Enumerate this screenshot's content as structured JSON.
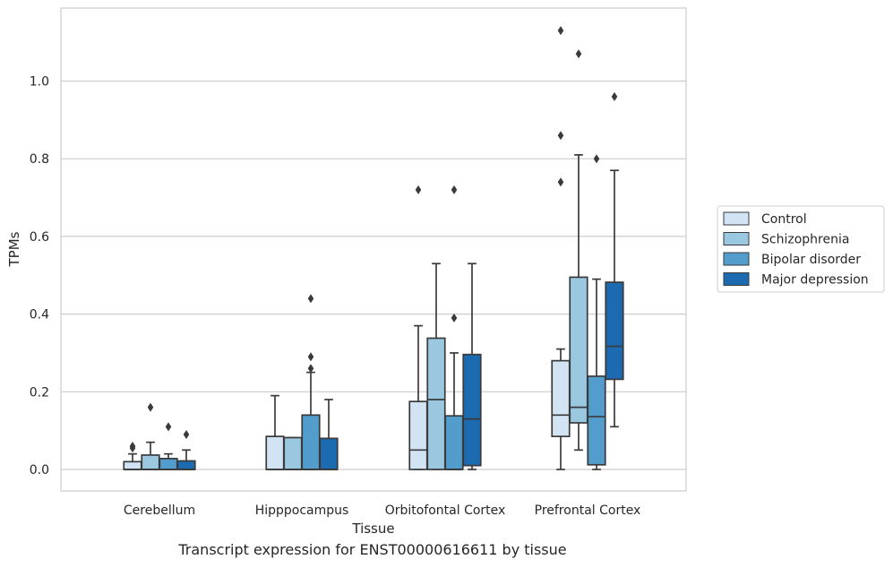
{
  "caption": "Transcript expression for ENST00000616611 by tissue",
  "chart_data": {
    "type": "box",
    "xlabel": "Tissue",
    "ylabel": "TPMs",
    "ylim": [
      -0.055,
      1.19
    ],
    "yticks": [
      0.0,
      0.2,
      0.4,
      0.6,
      0.8,
      1.0
    ],
    "ytick_labels": [
      "0.0",
      "0.2",
      "0.4",
      "0.6",
      "0.8",
      "1.0"
    ],
    "grid": "horizontal",
    "legend_position": "right",
    "categories": [
      "Cerebellum",
      "Hipppocampus",
      "Orbitofontal Cortex",
      "Prefrontal Cortex"
    ],
    "series": [
      {
        "name": "Control",
        "color": "#d2e3f3",
        "boxes": [
          {
            "whisker_low": 0.0,
            "q1": 0.0,
            "median": 0.0,
            "q3": 0.02,
            "whisker_high": 0.04,
            "outliers": [
              0.06,
              0.055
            ]
          },
          {
            "whisker_low": 0.0,
            "q1": 0.0,
            "median": 0.0,
            "q3": 0.085,
            "whisker_high": 0.19,
            "outliers": []
          },
          {
            "whisker_low": 0.0,
            "q1": 0.0,
            "median": 0.05,
            "q3": 0.175,
            "whisker_high": 0.37,
            "outliers": [
              0.72
            ]
          },
          {
            "whisker_low": 0.0,
            "q1": 0.085,
            "median": 0.14,
            "q3": 0.28,
            "whisker_high": 0.31,
            "outliers": [
              0.74,
              0.86,
              1.13
            ]
          }
        ]
      },
      {
        "name": "Schizophrenia",
        "color": "#9ac8e0",
        "boxes": [
          {
            "whisker_low": 0.0,
            "q1": 0.0,
            "median": 0.0,
            "q3": 0.037,
            "whisker_high": 0.07,
            "outliers": [
              0.16
            ]
          },
          {
            "whisker_low": 0.0,
            "q1": 0.0,
            "median": 0.0,
            "q3": 0.082,
            "whisker_high": 0.082,
            "outliers": []
          },
          {
            "whisker_low": 0.0,
            "q1": 0.0,
            "median": 0.18,
            "q3": 0.338,
            "whisker_high": 0.53,
            "outliers": []
          },
          {
            "whisker_low": 0.05,
            "q1": 0.12,
            "median": 0.16,
            "q3": 0.495,
            "whisker_high": 0.81,
            "outliers": [
              1.07
            ]
          }
        ]
      },
      {
        "name": "Bipolar disorder",
        "color": "#529dcc",
        "boxes": [
          {
            "whisker_low": 0.0,
            "q1": 0.0,
            "median": 0.0,
            "q3": 0.028,
            "whisker_high": 0.04,
            "outliers": [
              0.11
            ]
          },
          {
            "whisker_low": 0.0,
            "q1": 0.0,
            "median": 0.0,
            "q3": 0.14,
            "whisker_high": 0.25,
            "outliers": [
              0.26,
              0.29,
              0.44
            ]
          },
          {
            "whisker_low": 0.0,
            "q1": 0.0,
            "median": 0.0,
            "q3": 0.138,
            "whisker_high": 0.3,
            "outliers": [
              0.39,
              0.72
            ]
          },
          {
            "whisker_low": 0.0,
            "q1": 0.012,
            "median": 0.136,
            "q3": 0.24,
            "whisker_high": 0.49,
            "outliers": [
              0.8
            ]
          }
        ]
      },
      {
        "name": "Major depression",
        "color": "#1c6aaf",
        "boxes": [
          {
            "whisker_low": 0.0,
            "q1": 0.0,
            "median": 0.0,
            "q3": 0.022,
            "whisker_high": 0.05,
            "outliers": [
              0.09
            ]
          },
          {
            "whisker_low": 0.0,
            "q1": 0.0,
            "median": 0.0,
            "q3": 0.08,
            "whisker_high": 0.18,
            "outliers": []
          },
          {
            "whisker_low": 0.0,
            "q1": 0.01,
            "median": 0.13,
            "q3": 0.296,
            "whisker_high": 0.53,
            "outliers": []
          },
          {
            "whisker_low": 0.11,
            "q1": 0.232,
            "median": 0.317,
            "q3": 0.482,
            "whisker_high": 0.77,
            "outliers": [
              0.96
            ]
          }
        ]
      }
    ]
  }
}
